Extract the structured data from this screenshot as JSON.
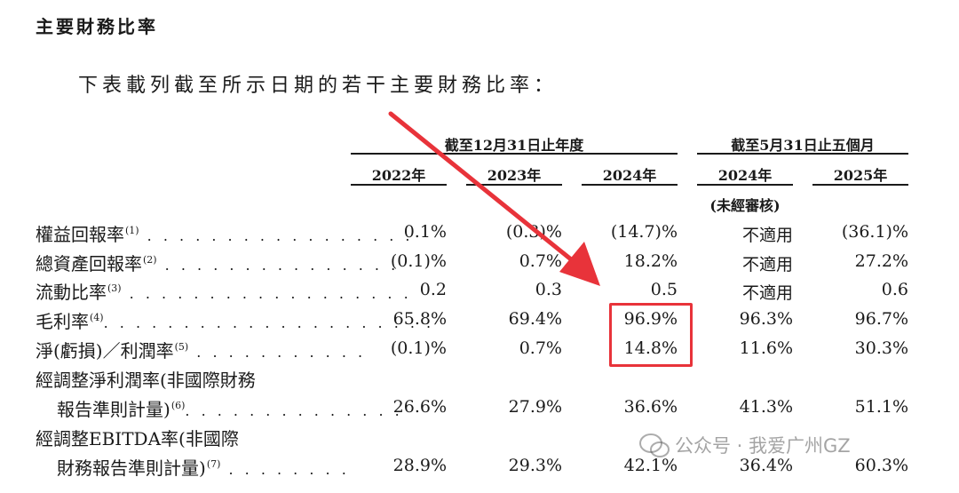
{
  "heading": "主要財務比率",
  "intro": "下表載列截至所示日期的若干主要財務比率：",
  "groups": {
    "year_end": "截至12月31日止年度",
    "five_months": "截至5月31日止五個月"
  },
  "columns": [
    "2022年",
    "2023年",
    "2024年",
    "2024年",
    "2025年"
  ],
  "unaudited_note": "(未經審核)",
  "rows": [
    {
      "label": "權益回報率",
      "note": "(1)",
      "values": [
        "0.1%",
        "(0.3)%",
        "(14.7)%",
        "不適用",
        "(36.1)%"
      ]
    },
    {
      "label": "總資產回報率",
      "note": "(2)",
      "values": [
        "(0.1)%",
        "0.7%",
        "18.2%",
        "不適用",
        "27.2%"
      ]
    },
    {
      "label": "流動比率",
      "note": "(3)",
      "values": [
        "0.2",
        "0.3",
        "0.5",
        "不適用",
        "0.6"
      ]
    },
    {
      "label": "毛利率",
      "note": "(4)",
      "values": [
        "65.8%",
        "69.4%",
        "96.9%",
        "96.3%",
        "96.7%"
      ]
    },
    {
      "label": "淨(虧損)／利潤率",
      "note": "(5)",
      "values": [
        "(0.1)%",
        "0.7%",
        "14.8%",
        "11.6%",
        "30.3%"
      ]
    },
    {
      "label": "經調整淨利潤率(非國際財務",
      "label2": "報告準則計量)",
      "note": "(6)",
      "values": [
        "26.6%",
        "27.9%",
        "36.6%",
        "41.3%",
        "51.1%"
      ]
    },
    {
      "label": "經調整EBITDA率(非國際",
      "label2": "財務報告準則計量)",
      "note": "(7)",
      "values": [
        "28.9%",
        "29.3%",
        "42.1%",
        "36.4%",
        "60.3%"
      ]
    }
  ],
  "watermark": "公众号 · 我爱广州GZ",
  "colors": {
    "highlight": "#e8333a",
    "arrow": "#e8333a"
  }
}
